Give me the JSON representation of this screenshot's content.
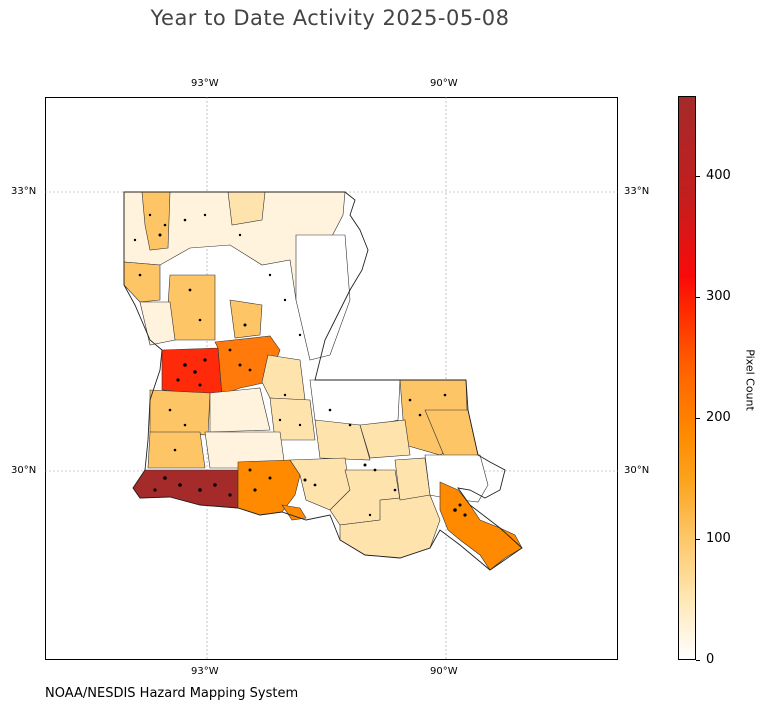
{
  "title": "Year to Date Activity 2025-05-08",
  "credit": "NOAA/NESDIS Hazard Mapping System",
  "longitude_labels": [
    "93°W",
    "90°W"
  ],
  "latitude_labels": [
    "33°N",
    "30°N"
  ],
  "colorbar": {
    "label": "Pixel Count",
    "ticks": [
      "0",
      "100",
      "200",
      "300",
      "400"
    ],
    "range": [
      0,
      460
    ],
    "colors": [
      "#ffffff",
      "#ffe9b8",
      "#fdc565",
      "#fca21c",
      "#ff8a00",
      "#ff2a00",
      "#a52a2a"
    ]
  },
  "map": {
    "region": "Louisiana parishes",
    "extent_lon": [
      -95,
      -87.8
    ],
    "extent_lat": [
      28,
      34.2
    ],
    "highlight_colors": {
      "max": "#a52a2a",
      "very_high": "#ff2a0a",
      "high": "#ff7a0a",
      "mid_high": "#fd9a12",
      "mid": "#fdc565",
      "low": "#ffe3ad",
      "very_low": "#fff3dd",
      "none": "#ffffff"
    }
  }
}
